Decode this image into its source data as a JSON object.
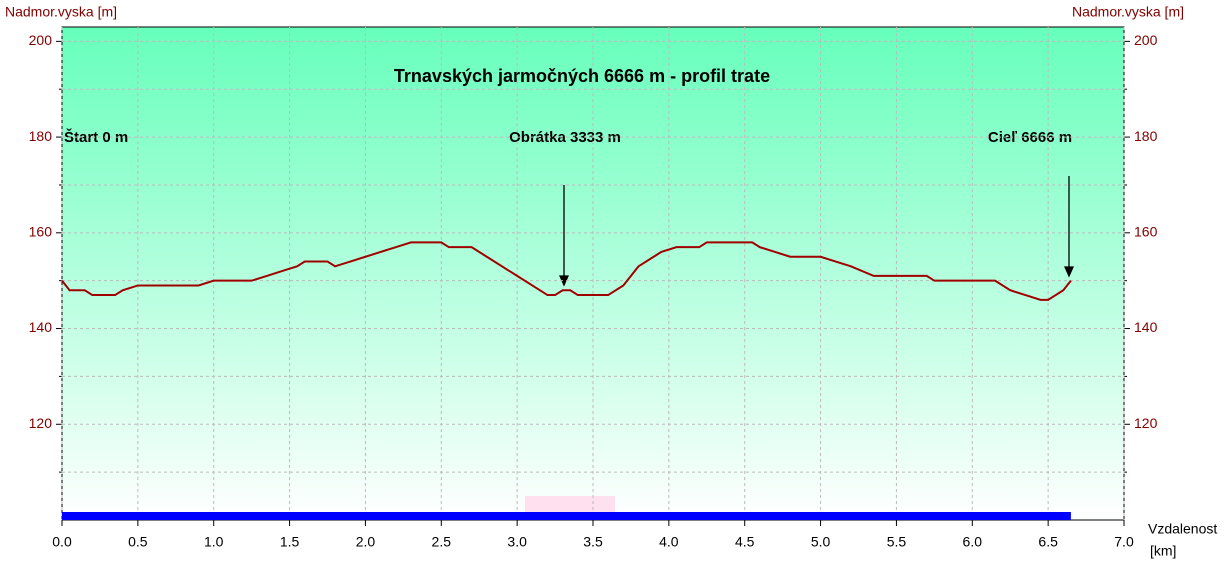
{
  "chart_data": {
    "type": "line",
    "title": "Trnavských jarmočných 6666 m - profil trate",
    "y_label": "Nadmor.vyska [m]",
    "y2_label": "Nadmor.vyska [m]",
    "x_label": "Vzdalenost",
    "x_unit": "[km]",
    "annotations": [
      "Štart 0 m",
      "Obrátka 3333 m",
      "Cieľ 6666 m"
    ],
    "xlim": [
      0,
      7
    ],
    "xticks": [
      {
        "value": 0,
        "label": "0.0"
      },
      {
        "value": 0.5,
        "label": "0.5"
      },
      {
        "value": 1,
        "label": "1.0"
      },
      {
        "value": 1.5,
        "label": "1.5"
      },
      {
        "value": 2,
        "label": "2.0"
      },
      {
        "value": 2.5,
        "label": "2.5"
      },
      {
        "value": 3,
        "label": "3.0"
      },
      {
        "value": 3.5,
        "label": "3.5"
      },
      {
        "value": 4,
        "label": "4.0"
      },
      {
        "value": 4.5,
        "label": "4.5"
      },
      {
        "value": 5,
        "label": "5.0"
      },
      {
        "value": 5.5,
        "label": "5.5"
      },
      {
        "value": 6,
        "label": "6.0"
      },
      {
        "value": 6.5,
        "label": "6.5"
      },
      {
        "value": 7,
        "label": "7.0"
      }
    ],
    "ylim": [
      100,
      203
    ],
    "yticks": [
      120,
      140,
      160,
      180,
      200
    ],
    "yminor": [
      110,
      130,
      150,
      170,
      190
    ],
    "grid": true,
    "distance_bar": {
      "value": 6.65,
      "color": "#0000ff"
    },
    "series": [
      {
        "name": "profil",
        "color": "#a00000",
        "x": [
          0,
          0.05,
          0.15,
          0.2,
          0.35,
          0.4,
          0.5,
          0.9,
          1.0,
          1.25,
          1.35,
          1.45,
          1.55,
          1.6,
          1.75,
          1.8,
          1.9,
          2.0,
          2.1,
          2.2,
          2.3,
          2.5,
          2.55,
          2.7,
          2.8,
          2.9,
          3.0,
          3.1,
          3.2,
          3.25,
          3.3,
          3.35,
          3.4,
          3.6,
          3.7,
          3.8,
          3.9,
          3.95,
          4.05,
          4.2,
          4.25,
          4.55,
          4.6,
          4.7,
          4.8,
          5.0,
          5.1,
          5.2,
          5.35,
          5.7,
          5.75,
          6.15,
          6.25,
          6.35,
          6.45,
          6.5,
          6.55,
          6.6,
          6.65
        ],
        "values": [
          150,
          148,
          148,
          147,
          147,
          148,
          149,
          149,
          150,
          150,
          151,
          152,
          153,
          154,
          154,
          153,
          154,
          155,
          156,
          157,
          158,
          158,
          157,
          157,
          155,
          153,
          151,
          149,
          147,
          147,
          148,
          148,
          147,
          147,
          149,
          153,
          155,
          156,
          157,
          157,
          158,
          158,
          157,
          156,
          155,
          155,
          154,
          153,
          151,
          151,
          150,
          150,
          148,
          147,
          146,
          146,
          147,
          148,
          150
        ]
      }
    ]
  }
}
